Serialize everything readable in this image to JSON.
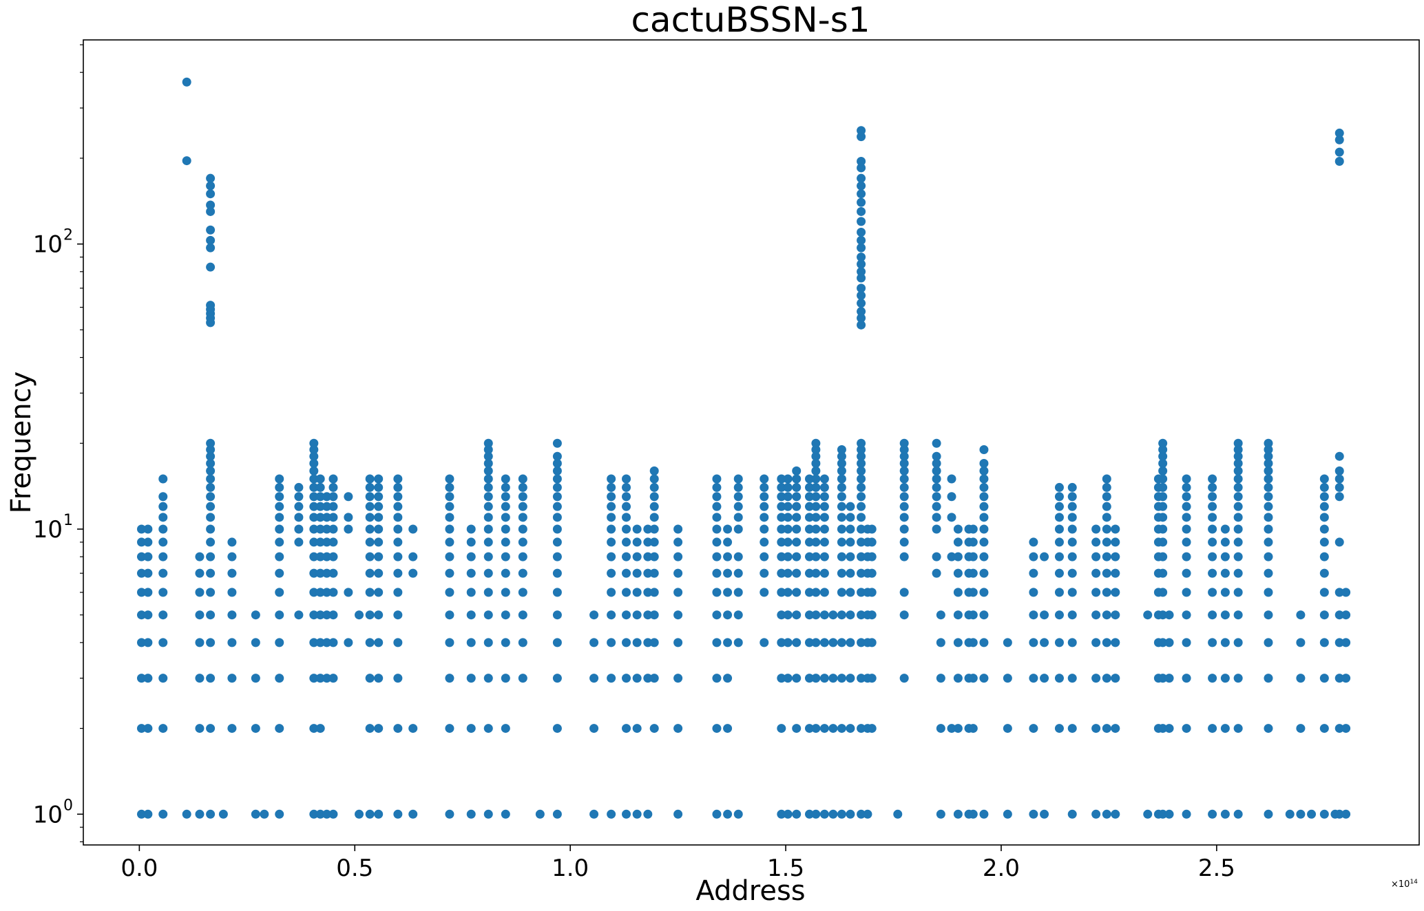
{
  "chart_data": {
    "type": "scatter",
    "title": "cactuBSSN-s1",
    "xlabel": "Address",
    "ylabel": "Frequency",
    "xscale": "linear",
    "yscale": "log",
    "x_offset_text": "×10",
    "x_offset_exponent": "14",
    "xlim": [
      -0.13,
      2.97
    ],
    "ylim": [
      0.78,
      520
    ],
    "xticks": [
      0.0,
      0.5,
      1.0,
      1.5,
      2.0,
      2.5
    ],
    "xtick_labels": [
      "0.0",
      "0.5",
      "1.0",
      "1.5",
      "2.0",
      "2.5"
    ],
    "yticks": [
      1,
      10,
      100
    ],
    "ytick_bases": [
      "10",
      "10",
      "10"
    ],
    "ytick_exponents": [
      "0",
      "1",
      "2"
    ],
    "grid": false,
    "legend": false,
    "color": "#1f77b4",
    "columns": [
      {
        "x": 0.005,
        "y": [
          1,
          2,
          3,
          4,
          5,
          6,
          7,
          8,
          9,
          10
        ]
      },
      {
        "x": 0.02,
        "y": [
          1,
          2,
          3,
          4,
          5,
          6,
          7,
          8,
          9,
          10
        ]
      },
      {
        "x": 0.055,
        "y": [
          1,
          2,
          3,
          4,
          5,
          6,
          7,
          8,
          9,
          10,
          11,
          12,
          13,
          15
        ]
      },
      {
        "x": 0.11,
        "y": [
          1,
          196,
          370
        ]
      },
      {
        "x": 0.14,
        "y": [
          1,
          2,
          3,
          4,
          5,
          6,
          7,
          8
        ]
      },
      {
        "x": 0.165,
        "y": [
          1,
          2,
          3,
          4,
          5,
          6,
          7,
          8,
          9,
          10,
          11,
          12,
          13,
          14,
          15,
          16,
          17,
          18,
          19,
          20,
          53,
          55,
          57,
          59,
          61,
          83,
          97,
          103,
          112,
          130,
          137,
          150,
          160,
          170
        ]
      },
      {
        "x": 0.195,
        "y": [
          1
        ]
      },
      {
        "x": 0.215,
        "y": [
          2,
          3,
          4,
          5,
          6,
          7,
          8,
          9
        ]
      },
      {
        "x": 0.27,
        "y": [
          1,
          2,
          3,
          4,
          5
        ]
      },
      {
        "x": 0.29,
        "y": [
          1
        ]
      },
      {
        "x": 0.325,
        "y": [
          1,
          2,
          3,
          4,
          5,
          6,
          7,
          8,
          9,
          10,
          11,
          12,
          13,
          14,
          15
        ]
      },
      {
        "x": 0.37,
        "y": [
          5,
          9,
          10,
          11,
          12,
          13,
          14
        ]
      },
      {
        "x": 0.405,
        "y": [
          1,
          2,
          3,
          4,
          5,
          6,
          7,
          8,
          9,
          10,
          11,
          12,
          13,
          14,
          15,
          16,
          17,
          18,
          19,
          20
        ]
      },
      {
        "x": 0.42,
        "y": [
          1,
          2,
          3,
          4,
          5,
          6,
          7,
          8,
          9,
          10,
          11,
          12,
          13,
          14,
          15
        ]
      },
      {
        "x": 0.435,
        "y": [
          1,
          3,
          4,
          5,
          6,
          7,
          8,
          9,
          10,
          11,
          12,
          13
        ]
      },
      {
        "x": 0.45,
        "y": [
          1,
          3,
          4,
          5,
          6,
          7,
          8,
          9,
          10,
          11,
          12,
          13,
          14,
          15
        ]
      },
      {
        "x": 0.485,
        "y": [
          4,
          6,
          10,
          11,
          13
        ]
      },
      {
        "x": 0.51,
        "y": [
          1,
          5
        ]
      },
      {
        "x": 0.535,
        "y": [
          1,
          2,
          3,
          4,
          5,
          6,
          7,
          8,
          9,
          10,
          11,
          12,
          13,
          14,
          15
        ]
      },
      {
        "x": 0.555,
        "y": [
          1,
          2,
          3,
          4,
          5,
          6,
          7,
          8,
          9,
          10,
          11,
          12,
          13,
          14,
          15
        ]
      },
      {
        "x": 0.6,
        "y": [
          1,
          2,
          3,
          4,
          5,
          6,
          7,
          8,
          9,
          10,
          11,
          12,
          13,
          14,
          15
        ]
      },
      {
        "x": 0.635,
        "y": [
          1,
          2,
          7,
          8,
          10
        ]
      },
      {
        "x": 0.72,
        "y": [
          1,
          2,
          3,
          4,
          5,
          6,
          7,
          8,
          9,
          10,
          11,
          12,
          13,
          14,
          15
        ]
      },
      {
        "x": 0.77,
        "y": [
          1,
          2,
          3,
          4,
          5,
          6,
          7,
          8,
          9,
          10
        ]
      },
      {
        "x": 0.81,
        "y": [
          1,
          2,
          3,
          4,
          5,
          6,
          7,
          8,
          9,
          10,
          11,
          12,
          13,
          14,
          15,
          16,
          17,
          18,
          19,
          20
        ]
      },
      {
        "x": 0.85,
        "y": [
          1,
          2,
          3,
          4,
          5,
          6,
          7,
          8,
          9,
          10,
          11,
          12,
          13,
          14,
          15
        ]
      },
      {
        "x": 0.89,
        "y": [
          3,
          4,
          5,
          6,
          7,
          8,
          9,
          10,
          11,
          12,
          13,
          14,
          15
        ]
      },
      {
        "x": 0.93,
        "y": [
          1
        ]
      },
      {
        "x": 0.97,
        "y": [
          1,
          2,
          3,
          4,
          5,
          6,
          7,
          8,
          9,
          10,
          11,
          12,
          13,
          14,
          15,
          16,
          17,
          18,
          20
        ]
      },
      {
        "x": 1.055,
        "y": [
          1,
          2,
          3,
          4,
          5
        ]
      },
      {
        "x": 1.095,
        "y": [
          1,
          3,
          4,
          5,
          6,
          7,
          8,
          9,
          10,
          11,
          12,
          13,
          14,
          15
        ]
      },
      {
        "x": 1.13,
        "y": [
          1,
          2,
          3,
          4,
          5,
          6,
          7,
          8,
          9,
          10,
          11,
          12,
          13,
          14,
          15
        ]
      },
      {
        "x": 1.155,
        "y": [
          1,
          2,
          3,
          4,
          5,
          6,
          7,
          8,
          9,
          10
        ]
      },
      {
        "x": 1.18,
        "y": [
          1,
          3,
          4,
          5,
          6,
          7,
          8,
          9,
          10
        ]
      },
      {
        "x": 1.195,
        "y": [
          2,
          3,
          4,
          5,
          6,
          7,
          8,
          9,
          10,
          11,
          12,
          13,
          14,
          15,
          16
        ]
      },
      {
        "x": 1.25,
        "y": [
          1,
          2,
          3,
          4,
          5,
          6,
          7,
          8,
          9,
          10
        ]
      },
      {
        "x": 1.34,
        "y": [
          1,
          2,
          3,
          4,
          5,
          6,
          7,
          8,
          9,
          10,
          11,
          12,
          13,
          14,
          15
        ]
      },
      {
        "x": 1.365,
        "y": [
          1,
          2,
          3,
          4,
          5,
          6,
          7,
          8,
          9,
          10
        ]
      },
      {
        "x": 1.39,
        "y": [
          1,
          4,
          5,
          6,
          7,
          8,
          10,
          11,
          12,
          13,
          14,
          15
        ]
      },
      {
        "x": 1.45,
        "y": [
          4,
          6,
          7,
          8,
          9,
          10,
          11,
          12,
          13,
          14,
          15
        ]
      },
      {
        "x": 1.49,
        "y": [
          1,
          2,
          3,
          4,
          5,
          6,
          7,
          8,
          9,
          10,
          11,
          12,
          13,
          14,
          15
        ]
      },
      {
        "x": 1.505,
        "y": [
          1,
          3,
          4,
          5,
          6,
          7,
          8,
          9,
          10,
          11,
          12,
          13,
          14,
          15
        ]
      },
      {
        "x": 1.525,
        "y": [
          1,
          2,
          3,
          4,
          5,
          6,
          7,
          8,
          9,
          10,
          11,
          12,
          13,
          14,
          15,
          16
        ]
      },
      {
        "x": 1.555,
        "y": [
          1,
          2,
          3,
          4,
          5,
          6,
          7,
          8,
          9,
          10,
          11,
          12,
          13,
          14,
          15
        ]
      },
      {
        "x": 1.57,
        "y": [
          1,
          2,
          3,
          4,
          5,
          6,
          7,
          8,
          9,
          10,
          11,
          12,
          13,
          14,
          15,
          16,
          17,
          18,
          19,
          20
        ]
      },
      {
        "x": 1.59,
        "y": [
          1,
          2,
          3,
          4,
          5,
          6,
          7,
          8,
          9,
          10,
          11,
          12,
          13,
          14,
          15
        ]
      },
      {
        "x": 1.61,
        "y": [
          1,
          2,
          3,
          4,
          5
        ]
      },
      {
        "x": 1.63,
        "y": [
          1,
          2,
          3,
          4,
          5,
          6,
          7,
          8,
          9,
          10,
          11,
          12,
          13,
          14,
          15,
          16,
          17,
          18,
          19
        ]
      },
      {
        "x": 1.65,
        "y": [
          1,
          2,
          3,
          4,
          5,
          6,
          7,
          8,
          9,
          10,
          11,
          12
        ]
      },
      {
        "x": 1.675,
        "y": [
          1,
          2,
          3,
          4,
          5,
          6,
          7,
          8,
          9,
          10,
          11,
          12,
          13,
          14,
          15,
          16,
          17,
          18,
          19,
          20,
          52,
          55,
          58,
          62,
          66,
          70,
          76,
          80,
          85,
          90,
          97,
          103,
          110,
          120,
          130,
          140,
          150,
          160,
          170,
          185,
          195,
          238,
          250
        ]
      },
      {
        "x": 1.69,
        "y": [
          1,
          2,
          3,
          4,
          5,
          6,
          7,
          8,
          9,
          10
        ]
      },
      {
        "x": 1.7,
        "y": [
          2,
          3,
          4,
          5,
          6,
          7,
          8,
          9,
          10
        ]
      },
      {
        "x": 1.76,
        "y": [
          1
        ]
      },
      {
        "x": 1.775,
        "y": [
          3,
          5,
          6,
          8,
          9,
          10,
          11,
          12,
          13,
          14,
          15,
          16,
          17,
          18,
          19,
          20
        ]
      },
      {
        "x": 1.85,
        "y": [
          7,
          8,
          10,
          11,
          12,
          13,
          14,
          15,
          16,
          17,
          18,
          20
        ]
      },
      {
        "x": 1.86,
        "y": [
          1,
          2,
          3,
          4,
          5
        ]
      },
      {
        "x": 1.885,
        "y": [
          2,
          8,
          11,
          13,
          15
        ]
      },
      {
        "x": 1.9,
        "y": [
          1,
          2,
          3,
          4,
          5,
          6,
          7,
          8,
          9,
          10
        ]
      },
      {
        "x": 1.925,
        "y": [
          1,
          2,
          3,
          4,
          5,
          6,
          7,
          8,
          9,
          10
        ]
      },
      {
        "x": 1.935,
        "y": [
          1,
          2,
          3,
          4,
          5,
          6,
          7,
          8,
          9,
          10
        ]
      },
      {
        "x": 1.96,
        "y": [
          1,
          3,
          4,
          5,
          6,
          7,
          8,
          9,
          10,
          11,
          12,
          13,
          14,
          15,
          16,
          17,
          19
        ]
      },
      {
        "x": 2.015,
        "y": [
          1,
          2,
          3,
          4
        ]
      },
      {
        "x": 2.075,
        "y": [
          1,
          2,
          3,
          4,
          5,
          6,
          7,
          8,
          9
        ]
      },
      {
        "x": 2.1,
        "y": [
          1,
          3,
          4,
          5,
          8
        ]
      },
      {
        "x": 2.135,
        "y": [
          2,
          3,
          4,
          5,
          6,
          7,
          8,
          9,
          10,
          11,
          12,
          13,
          14
        ]
      },
      {
        "x": 2.165,
        "y": [
          1,
          2,
          3,
          4,
          5,
          6,
          7,
          8,
          9,
          10,
          11,
          12,
          13,
          14
        ]
      },
      {
        "x": 2.22,
        "y": [
          1,
          2,
          3,
          4,
          5,
          6,
          7,
          8,
          9,
          10
        ]
      },
      {
        "x": 2.245,
        "y": [
          1,
          2,
          3,
          4,
          5,
          6,
          7,
          8,
          9,
          10,
          11,
          12,
          13,
          14,
          15
        ]
      },
      {
        "x": 2.265,
        "y": [
          1,
          2,
          3,
          4,
          5,
          6,
          7,
          8,
          9,
          10
        ]
      },
      {
        "x": 2.34,
        "y": [
          1,
          5
        ]
      },
      {
        "x": 2.365,
        "y": [
          1,
          2,
          3,
          4,
          5,
          6,
          7,
          8,
          9,
          10,
          11,
          12,
          13,
          14,
          15
        ]
      },
      {
        "x": 2.375,
        "y": [
          1,
          2,
          3,
          4,
          5,
          6,
          7,
          8,
          9,
          10,
          11,
          12,
          13,
          14,
          15,
          16,
          17,
          18,
          19,
          20
        ]
      },
      {
        "x": 2.39,
        "y": [
          1,
          2,
          3,
          4,
          5
        ]
      },
      {
        "x": 2.43,
        "y": [
          1,
          2,
          3,
          4,
          5,
          6,
          7,
          8,
          9,
          10,
          11,
          12,
          13,
          14,
          15
        ]
      },
      {
        "x": 2.49,
        "y": [
          1,
          2,
          3,
          4,
          5,
          6,
          7,
          8,
          9,
          10,
          11,
          12,
          13,
          14,
          15
        ]
      },
      {
        "x": 2.52,
        "y": [
          1,
          2,
          3,
          4,
          5,
          6,
          7,
          8,
          9,
          10
        ]
      },
      {
        "x": 2.55,
        "y": [
          1,
          2,
          3,
          4,
          5,
          6,
          7,
          8,
          9,
          10,
          11,
          12,
          13,
          14,
          15,
          16,
          17,
          18,
          19,
          20
        ]
      },
      {
        "x": 2.62,
        "y": [
          1,
          2,
          3,
          4,
          5,
          6,
          7,
          8,
          9,
          10,
          11,
          12,
          13,
          14,
          15,
          16,
          17,
          18,
          19,
          20
        ]
      },
      {
        "x": 2.67,
        "y": [
          1
        ]
      },
      {
        "x": 2.695,
        "y": [
          1,
          2,
          3,
          4,
          5
        ]
      },
      {
        "x": 2.72,
        "y": [
          1
        ]
      },
      {
        "x": 2.75,
        "y": [
          1,
          2,
          3,
          4,
          5,
          6,
          7,
          8,
          9,
          10,
          11,
          12,
          13,
          14,
          15
        ]
      },
      {
        "x": 2.775,
        "y": [
          1
        ]
      },
      {
        "x": 2.785,
        "y": [
          1,
          2,
          3,
          4,
          5,
          6,
          9,
          13,
          14,
          15,
          16,
          18,
          195,
          210,
          232,
          245
        ]
      },
      {
        "x": 2.8,
        "y": [
          1,
          2,
          3,
          4,
          5,
          6
        ]
      }
    ]
  }
}
